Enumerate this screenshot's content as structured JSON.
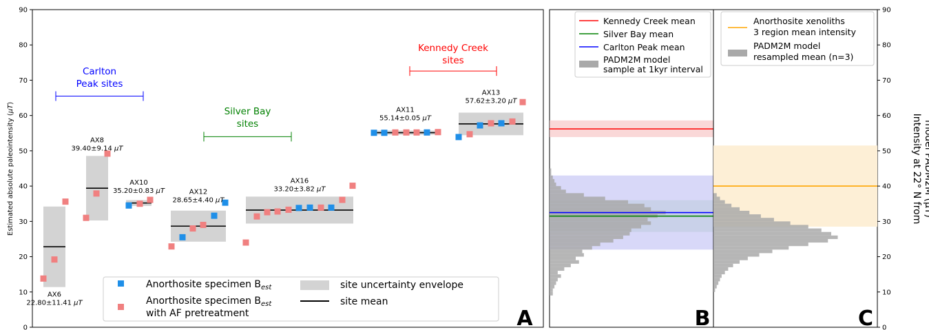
{
  "chart_data": [
    {
      "panel": "A",
      "type": "scatter",
      "ylabel_main": "Estimated absolute paleointensity (",
      "ylabel_unit": "μT",
      "ylabel_close": ")",
      "ylim": [
        0,
        90
      ],
      "yticks": [
        0,
        10,
        20,
        30,
        40,
        50,
        60,
        70,
        80,
        90
      ],
      "groups": [
        {
          "label_lines": [
            "Carlton",
            "Peak sites"
          ],
          "color": "#0000ff"
        },
        {
          "label_lines": [
            "Silver Bay",
            "sites"
          ],
          "color": "#008000"
        },
        {
          "label_lines": [
            "Kennedy Creek",
            "sites"
          ],
          "color": "#ff0000"
        }
      ],
      "sites": [
        {
          "name": "AX6",
          "stat": "22.80±11.41",
          "unit": "μT",
          "mean": 22.8,
          "env": [
            11.39,
            34.21
          ],
          "blue": [],
          "pink": [
            13.8,
            19.2,
            35.6
          ]
        },
        {
          "name": "AX8",
          "stat": "39.40±9.14",
          "unit": "μT",
          "mean": 39.4,
          "env": [
            30.26,
            48.54
          ],
          "blue": [],
          "pink": [
            31.0,
            37.9,
            49.2
          ]
        },
        {
          "name": "AX10",
          "stat": "35.20±0.83",
          "unit": "μT",
          "mean": 35.2,
          "env": [
            34.37,
            36.03
          ],
          "blue": [
            34.5
          ],
          "pink": [
            35.0,
            36.1
          ]
        },
        {
          "name": "AX12",
          "stat": "28.65±4.40",
          "unit": "μT",
          "mean": 28.65,
          "env": [
            24.25,
            33.05
          ],
          "blue": [
            25.5,
            31.6,
            35.3
          ],
          "pink": [
            22.9,
            28.0,
            29.0
          ]
        },
        {
          "name": "AX16",
          "stat": "33.20±3.82",
          "unit": "μT",
          "mean": 33.2,
          "env": [
            29.38,
            37.02
          ],
          "blue": [
            33.8,
            33.9,
            33.9
          ],
          "pink": [
            24.0,
            31.4,
            32.6,
            32.8,
            33.3,
            33.9,
            36.1,
            40.1
          ]
        },
        {
          "name": "AX11",
          "stat": "55.14±0.05",
          "unit": "μT",
          "mean": 55.14,
          "env": [
            55.09,
            55.19
          ],
          "blue": [
            55.1,
            55.1,
            55.2
          ],
          "pink": [
            55.2,
            55.2,
            55.2,
            55.3
          ]
        },
        {
          "name": "AX13",
          "stat": "57.62±3.20",
          "unit": "μT",
          "mean": 57.62,
          "env": [
            54.42,
            60.82
          ],
          "blue": [
            53.9,
            57.2,
            57.8
          ],
          "pink": [
            54.7,
            57.8,
            58.3,
            63.8
          ]
        }
      ],
      "legend": {
        "blue_label": "Anorthosite specimen B",
        "blue_sub": "est",
        "pink_label": "Anorthosite specimen B",
        "pink_sub": "est",
        "pink_label_2": "with AF pretreatment",
        "envelope_label": "site uncertainty envelope",
        "mean_label": "site mean"
      },
      "colors": {
        "blue": "#1f8fe8",
        "pink": "#f08080",
        "envelope": "#d3d3d3",
        "mean": "#000000"
      }
    },
    {
      "panel": "B",
      "type": "histogram",
      "ylim": [
        0,
        90
      ],
      "means": [
        {
          "label": "Kennedy Creek mean",
          "value": 56.2,
          "band": [
            53.9,
            58.6
          ],
          "color": "#ff0000",
          "band_color": "#f8c8c8"
        },
        {
          "label": "Silver Bay mean",
          "value": 31.5,
          "band": [
            27.0,
            36.0
          ],
          "color": "#008000",
          "band_color": "#b8dcb8"
        },
        {
          "label": "Carlton Peak mean",
          "value": 32.5,
          "band": [
            22.0,
            43.0
          ],
          "color": "#0000ff",
          "band_color": "#c8c8f5"
        }
      ],
      "hist_label_1": "PADM2M model",
      "hist_label_2": "sample at 1kyr interval",
      "hist_bins": [
        [
          9,
          2
        ],
        [
          10,
          2
        ],
        [
          11,
          3
        ],
        [
          12,
          4
        ],
        [
          13,
          5
        ],
        [
          14,
          7
        ],
        [
          15,
          5
        ],
        [
          16,
          9
        ],
        [
          17,
          13
        ],
        [
          18,
          18
        ],
        [
          19,
          16
        ],
        [
          20,
          21
        ],
        [
          21,
          20
        ],
        [
          22,
          26
        ],
        [
          23,
          31
        ],
        [
          24,
          39
        ],
        [
          25,
          45
        ],
        [
          26,
          49
        ],
        [
          27,
          50
        ],
        [
          28,
          56
        ],
        [
          29,
          62
        ],
        [
          30,
          60
        ],
        [
          31,
          66
        ],
        [
          32,
          71
        ],
        [
          33,
          62
        ],
        [
          34,
          58
        ],
        [
          35,
          48
        ],
        [
          36,
          34
        ],
        [
          37,
          21
        ],
        [
          38,
          10
        ],
        [
          39,
          7
        ],
        [
          40,
          4
        ],
        [
          41,
          3
        ],
        [
          42,
          2
        ],
        [
          43,
          1
        ],
        [
          44,
          1
        ]
      ]
    },
    {
      "panel": "C",
      "type": "histogram",
      "ylim": [
        0,
        90
      ],
      "yticks": [
        0,
        10,
        20,
        30,
        40,
        50,
        60,
        70,
        80,
        90
      ],
      "ylabel_line1": "Intensity at 22° N from",
      "ylabel_line2": "model PADM2M (μT)",
      "mean": {
        "label_1": "Anorthosite xenoliths",
        "label_2": "3 region mean intensity",
        "value": 40.0,
        "band": [
          28.5,
          51.5
        ],
        "color": "#ffa500",
        "band_color": "#fdefd6"
      },
      "hist_label_1": "PADM2M model",
      "hist_label_2": "resampled mean (n=3)",
      "hist_bins": [
        [
          10,
          1
        ],
        [
          11,
          2
        ],
        [
          12,
          3
        ],
        [
          13,
          4
        ],
        [
          14,
          5
        ],
        [
          15,
          7
        ],
        [
          16,
          9
        ],
        [
          17,
          12
        ],
        [
          18,
          16
        ],
        [
          19,
          21
        ],
        [
          20,
          28
        ],
        [
          21,
          36
        ],
        [
          22,
          46
        ],
        [
          23,
          58
        ],
        [
          24,
          70
        ],
        [
          25,
          76
        ],
        [
          26,
          72
        ],
        [
          27,
          66
        ],
        [
          28,
          58
        ],
        [
          29,
          47
        ],
        [
          30,
          37
        ],
        [
          31,
          29
        ],
        [
          32,
          22
        ],
        [
          33,
          16
        ],
        [
          34,
          11
        ],
        [
          35,
          7
        ],
        [
          36,
          4
        ],
        [
          37,
          2
        ]
      ]
    }
  ],
  "panel_letters": [
    "A",
    "B",
    "C"
  ]
}
